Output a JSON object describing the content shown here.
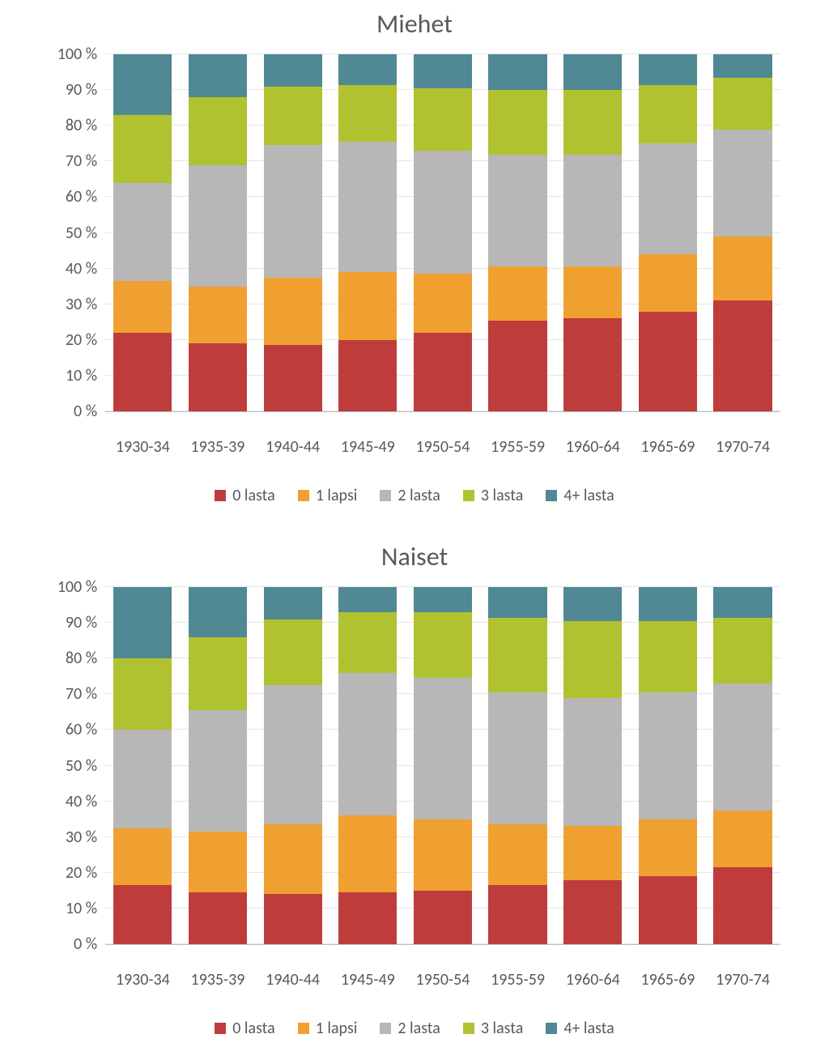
{
  "chart": {
    "type": "stacked-bar-percent",
    "ytick_labels": [
      "0 %",
      "10 %",
      "20 %",
      "30 %",
      "40 %",
      "50 %",
      "60 %",
      "70 %",
      "80 %",
      "90 %",
      "100 %"
    ],
    "ytick_values": [
      0,
      10,
      20,
      30,
      40,
      50,
      60,
      70,
      80,
      90,
      100
    ],
    "ylim": [
      0,
      100
    ],
    "categories": [
      "1930-34",
      "1935-39",
      "1940-44",
      "1945-49",
      "1950-54",
      "1955-59",
      "1960-64",
      "1965-69",
      "1970-74"
    ],
    "series_labels": [
      "0 lasta",
      "1 lapsi",
      "2 lasta",
      "3 lasta",
      "4+ lasta"
    ],
    "series_colors": [
      "#be3d3c",
      "#f0a030",
      "#b7b7b7",
      "#b0c230",
      "#508894"
    ],
    "background_color": "#ffffff",
    "grid_color": "#e6e6e6",
    "axis_color": "#bfbfbf",
    "text_color": "#595959",
    "title_fontsize": 32,
    "tick_fontsize": 20,
    "legend_fontsize": 20,
    "bar_gap_ratio": 0.22,
    "panels": [
      {
        "title": "Miehet",
        "data": [
          [
            22.0,
            14.5,
            27.5,
            19.0,
            17.0
          ],
          [
            19.0,
            16.0,
            34.0,
            19.0,
            12.0
          ],
          [
            18.5,
            19.0,
            37.0,
            16.5,
            9.0
          ],
          [
            20.0,
            19.0,
            36.5,
            16.0,
            8.5
          ],
          [
            22.0,
            16.5,
            34.5,
            17.5,
            9.5
          ],
          [
            25.5,
            15.0,
            31.5,
            18.0,
            10.0
          ],
          [
            26.0,
            14.5,
            31.5,
            18.0,
            10.0
          ],
          [
            28.0,
            16.0,
            31.0,
            16.5,
            8.5
          ],
          [
            31.0,
            18.0,
            30.0,
            14.5,
            6.5
          ]
        ]
      },
      {
        "title": "Naiset",
        "data": [
          [
            16.5,
            16.0,
            27.5,
            20.0,
            20.0
          ],
          [
            14.5,
            17.0,
            34.0,
            20.5,
            14.0
          ],
          [
            14.0,
            19.5,
            39.0,
            18.5,
            9.0
          ],
          [
            14.5,
            21.5,
            40.0,
            17.0,
            7.0
          ],
          [
            15.0,
            20.0,
            39.5,
            18.5,
            7.0
          ],
          [
            16.5,
            17.0,
            37.0,
            21.0,
            8.5
          ],
          [
            18.0,
            15.0,
            36.0,
            21.5,
            9.5
          ],
          [
            19.0,
            16.0,
            35.5,
            20.0,
            9.5
          ],
          [
            21.5,
            16.0,
            35.5,
            18.5,
            8.5
          ]
        ]
      }
    ]
  }
}
